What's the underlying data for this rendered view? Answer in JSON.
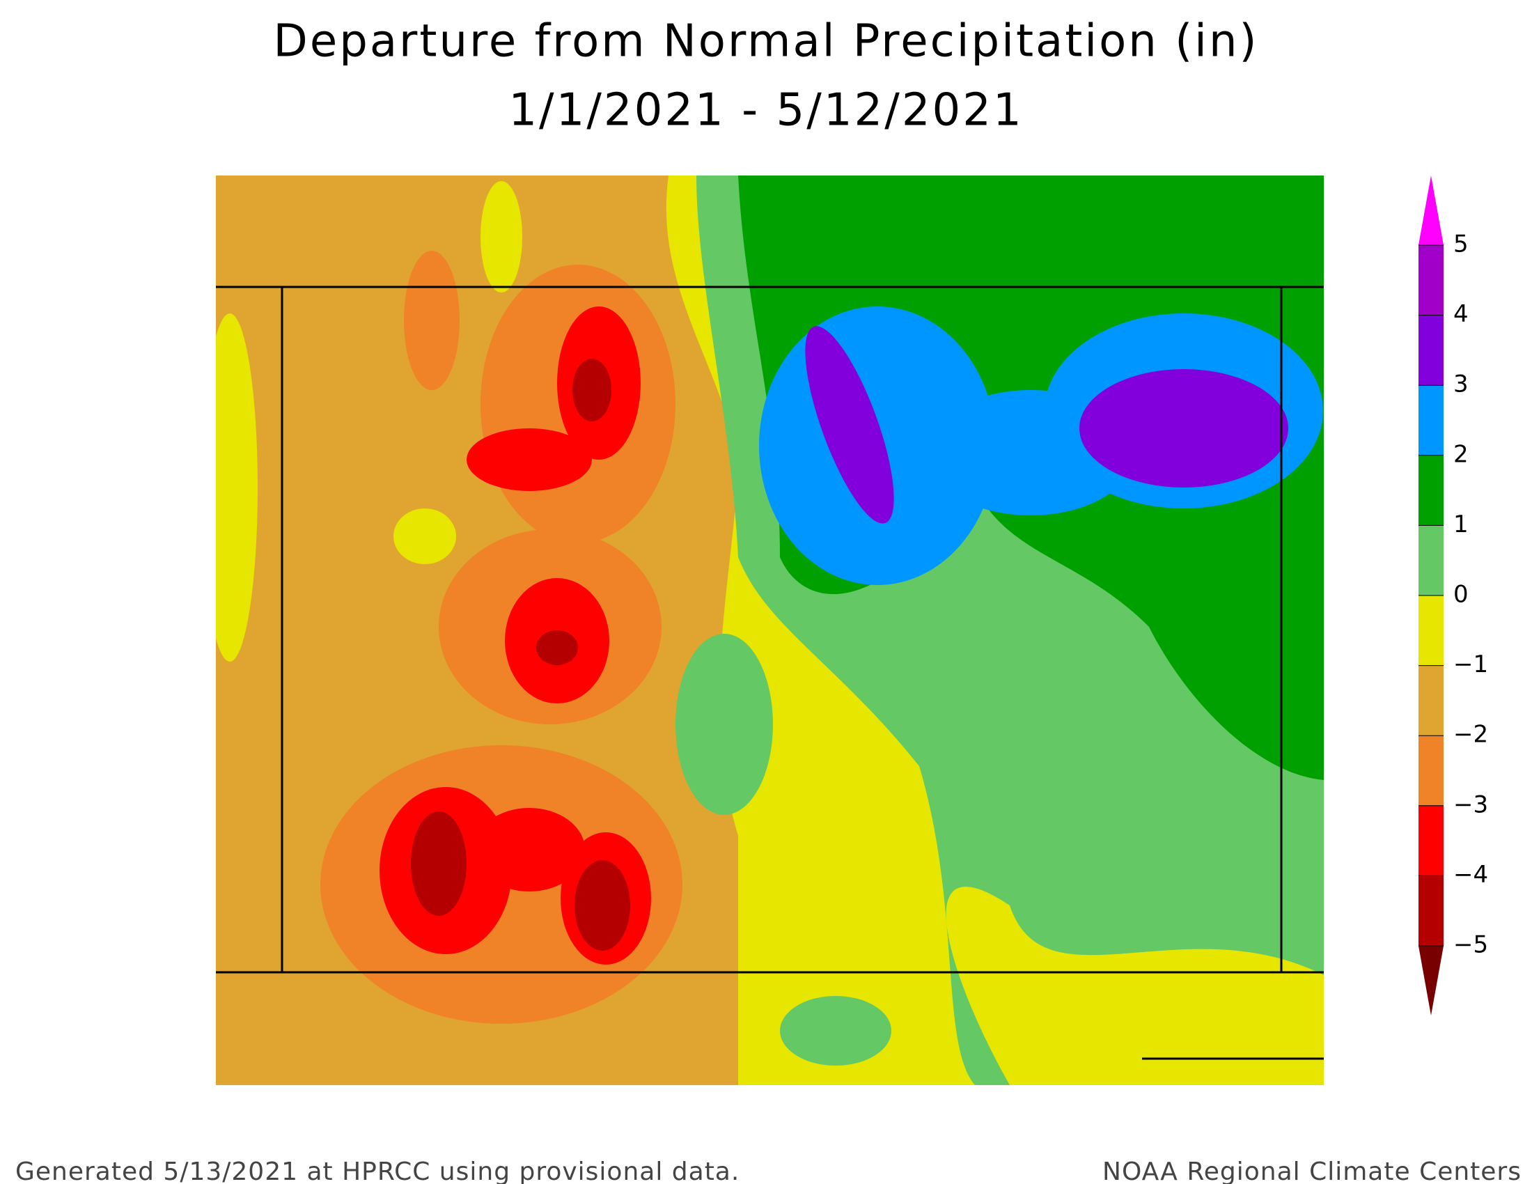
{
  "title": "Departure from Normal Precipitation (in)",
  "subtitle": "1/1/2021 - 5/12/2021",
  "legend": {
    "ticks": [
      {
        "value": -5,
        "label": "−5"
      },
      {
        "value": -4,
        "label": "−4"
      },
      {
        "value": -3,
        "label": "−3"
      },
      {
        "value": -2,
        "label": "−2"
      },
      {
        "value": -1,
        "label": "−1"
      },
      0,
      1,
      2,
      3,
      4,
      5
    ],
    "colors": [
      "#b40000",
      "#ff0000",
      "#f08228",
      "#e0a530",
      "#e6e600",
      "#64c864",
      "#00a000",
      "#0096ff",
      "#8200dc",
      "#a000c8"
    ],
    "under_color": "#780000",
    "over_color": "#ff00ff"
  },
  "footer": {
    "left": "Generated 5/13/2021 at HPRCC using provisional data.",
    "right": "NOAA Regional Climate Centers"
  }
}
